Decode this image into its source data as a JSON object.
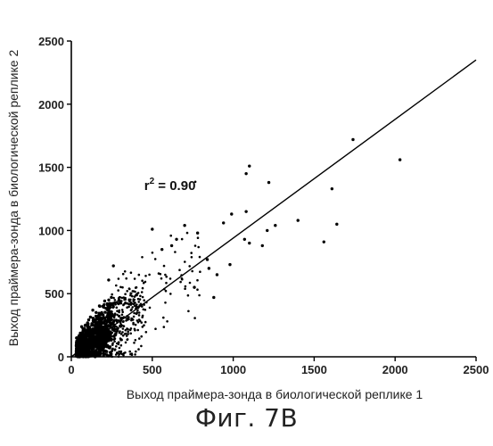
{
  "figure": {
    "caption": "Фиг. 7B"
  },
  "chart_data": {
    "type": "scatter",
    "xlabel": "Выход праймера-зонда в биологической реплике 1",
    "ylabel": "Выход праймера-зонда в биологической реплике 2",
    "xlim": [
      0,
      2500
    ],
    "ylim": [
      0,
      2500
    ],
    "xticks": [
      0,
      500,
      1000,
      1500,
      2000,
      2500
    ],
    "yticks": [
      0,
      500,
      1000,
      1500,
      2000,
      2500
    ],
    "grid": false,
    "annotation": {
      "base": "r",
      "sup": "2",
      "rest": " = 0.90",
      "x": 450,
      "y": 1320
    },
    "fit_line": {
      "x": [
        0,
        2500
      ],
      "y": [
        0,
        2350
      ]
    },
    "color": "#000000",
    "points": {
      "x": [
        1740,
        2030,
        1100,
        1080,
        1220,
        1610,
        1640,
        1560,
        1260,
        1070,
        1100,
        1180,
        940,
        700,
        500,
        990,
        1080,
        780,
        650,
        620,
        260,
        1210,
        840,
        850,
        900,
        1400,
        560,
        880,
        760,
        980
      ],
      "y": [
        1720,
        1560,
        1510,
        1450,
        1380,
        1330,
        1050,
        910,
        1040,
        930,
        900,
        880,
        1060,
        1040,
        1010,
        1130,
        1150,
        980,
        930,
        880,
        720,
        1000,
        770,
        700,
        650,
        1080,
        850,
        470,
        550,
        730
      ]
    },
    "cluster": {
      "slope": 0.95,
      "spread": 60
    }
  }
}
